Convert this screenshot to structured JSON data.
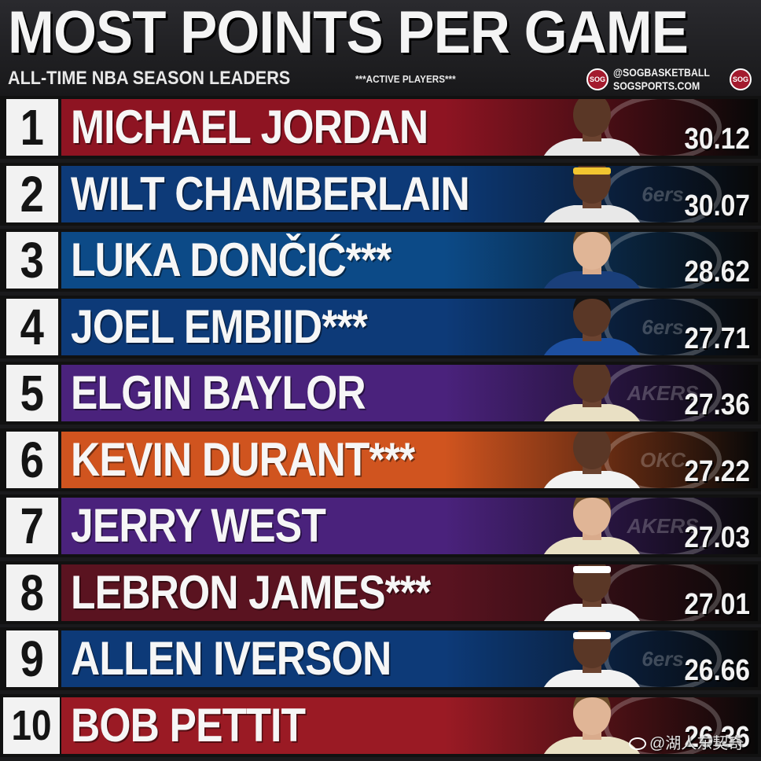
{
  "header": {
    "title": "MOST POINTS PER GAME",
    "subtitle": "ALL-TIME NBA SEASON LEADERS",
    "note": "***ACTIVE PLAYERS***",
    "handle": "@SOGBASKETBALL",
    "site": "SOGSPORTS.COM",
    "logo_text": "SOG"
  },
  "colors": {
    "bulls": "#8e1422",
    "sixers": "#0d3a78",
    "mavs": "#0c4a87",
    "lakers": "#4a227c",
    "thunder": "#d0541f",
    "cavs": "#5a1320",
    "hawks": "#9a1a24"
  },
  "team_logos": [
    "",
    "6ers",
    "",
    "6ers",
    "AKERS",
    "OKC",
    "AKERS",
    "",
    "6ers",
    ""
  ],
  "chart_data": {
    "type": "bar",
    "title": "MOST POINTS PER GAME",
    "subtitle": "ALL-TIME NBA SEASON LEADERS",
    "categories": [
      "MICHAEL JORDAN",
      "WILT CHAMBERLAIN",
      "LUKA DONČIĆ***",
      "JOEL EMBIID***",
      "ELGIN BAYLOR",
      "KEVIN DURANT***",
      "JERRY WEST",
      "LEBRON JAMES***",
      "ALLEN IVERSON",
      "BOB PETTIT"
    ],
    "ranks": [
      "1",
      "2",
      "3",
      "4",
      "5",
      "6",
      "7",
      "8",
      "9",
      "10"
    ],
    "values": [
      "30.12",
      "30.07",
      "28.62",
      "27.71",
      "27.36",
      "27.22",
      "27.03",
      "27.01",
      "26.66",
      "26.36"
    ],
    "team_colors": [
      "#8e1422",
      "#0d3a78",
      "#0c4a87",
      "#0d3a78",
      "#4a227c",
      "#d0541f",
      "#4a227c",
      "#5a1320",
      "#0d3a78",
      "#9a1a24"
    ],
    "jersey_colors": [
      "#e8e8e8",
      "#e8e8e8",
      "#1a3f7a",
      "#1d4fa0",
      "#e9e0c4",
      "#f2f2f2",
      "#e9e0c4",
      "#f2f2f2",
      "#f2f2f2",
      "#e9e0c4"
    ],
    "headband": [
      "",
      "#f2c530",
      "",
      "",
      "",
      "",
      "",
      "#ffffff",
      "#ffffff",
      ""
    ]
  },
  "watermark": {
    "text": "@湖人东契奇",
    "icon": "weibo-icon"
  }
}
